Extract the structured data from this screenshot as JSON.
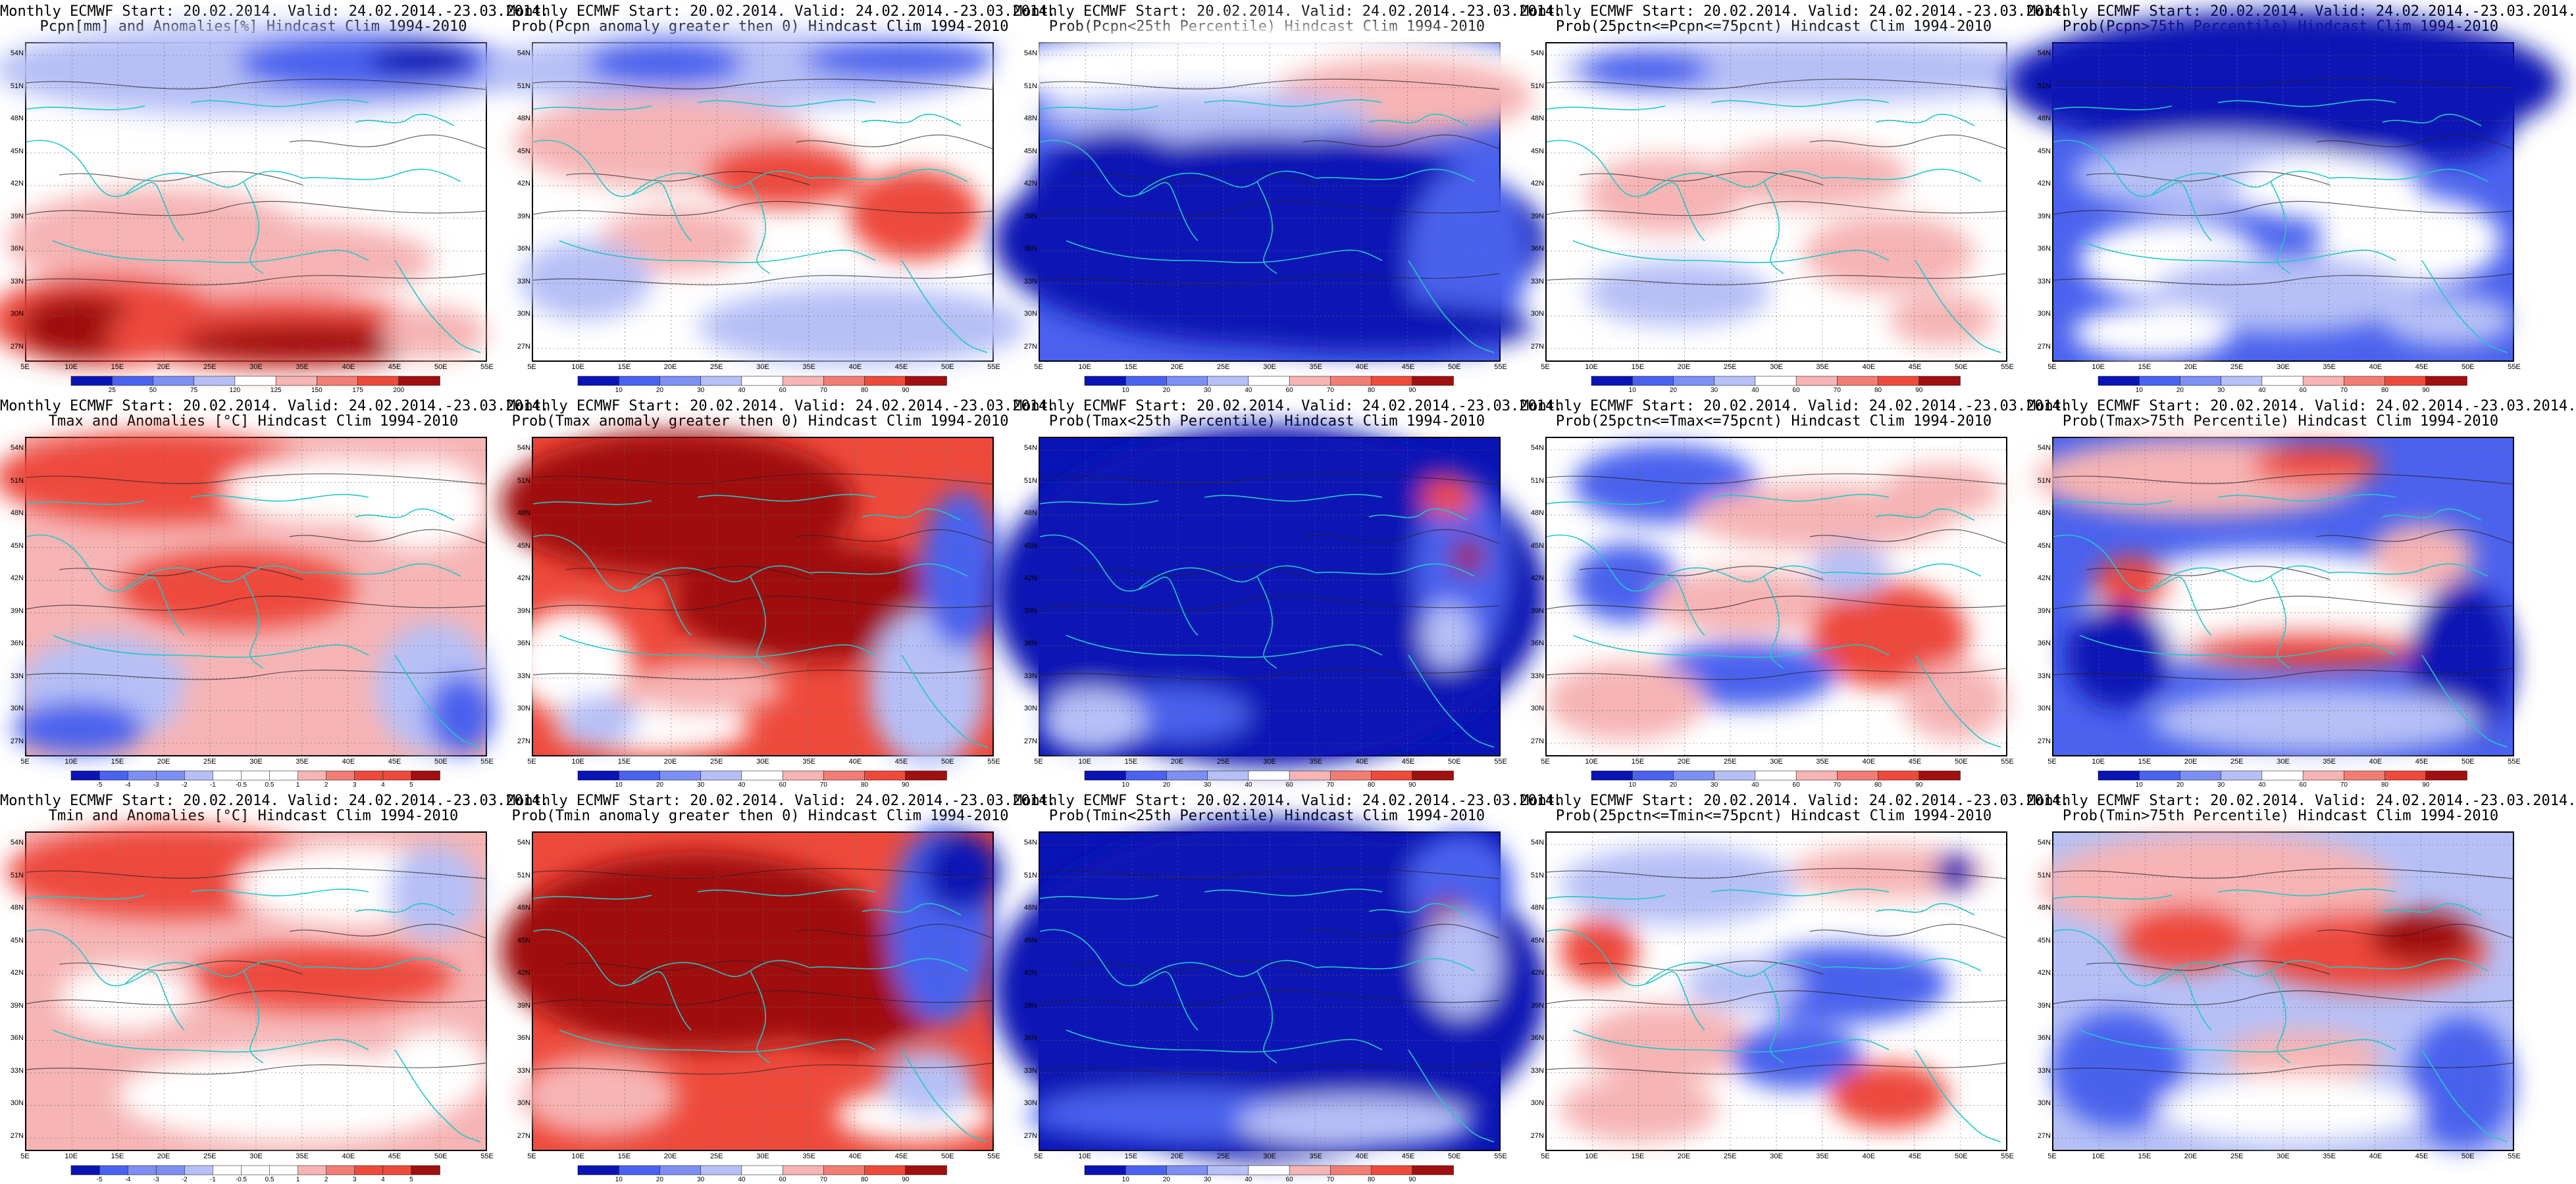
{
  "figure": {
    "columns": 5,
    "rows": 3,
    "lat_ticks": [
      "54N",
      "51N",
      "48N",
      "45N",
      "42N",
      "39N",
      "36N",
      "33N",
      "30N",
      "27N"
    ],
    "lon_ticks": [
      "5E",
      "10E",
      "15E",
      "20E",
      "25E",
      "30E",
      "35E",
      "40E",
      "45E",
      "50E",
      "55E"
    ],
    "cbar_anomaly_pcpn": [
      "25",
      "50",
      "75",
      "120",
      "125",
      "150",
      "175",
      "200"
    ],
    "cbar_anomaly_temp": [
      "-5",
      "-4",
      "-3",
      "-2",
      "-1",
      "-0.5",
      "0.5",
      "1",
      "2",
      "3",
      "4",
      "5"
    ],
    "cbar_probability": [
      "10",
      "20",
      "30",
      "40",
      "60",
      "70",
      "80",
      "90"
    ]
  },
  "colors": {
    "blue_dark": "#0a14b4",
    "blue_mid": "#4a62ee",
    "blue_light": "#b6c0f6",
    "neutral": "#ffffff",
    "red_light": "#f6b4b4",
    "red_mid": "#ee4a3c",
    "red_dark": "#a01010",
    "coast": "#22c8c8",
    "contour": "#222222"
  },
  "panels": [
    {
      "title_line1": "Monthly ECMWF Start: 20.02.2014. Valid: 24.02.2014.-23.03.2014.",
      "title_line2": "Pcpn[mm] and Anomalies[%] Hindcast Clim 1994-2010",
      "scheme": "pcpn_anom",
      "cbar": "cbar_anomaly_pcpn",
      "show_cbar": true
    },
    {
      "title_line1": "Monthly ECMWF Start: 20.02.2014. Valid: 24.02.2014.-23.03.2014.",
      "title_line2": "Prob(Pcpn anomaly greater then 0) Hindcast Clim 1994-2010",
      "scheme": "pcpn_prob0",
      "cbar": "cbar_probability",
      "show_cbar": true
    },
    {
      "title_line1": "Monthly ECMWF Start: 20.02.2014. Valid: 24.02.2014.-23.03.2014.",
      "title_line2": "Prob(Pcpn<25th Percentile) Hindcast Clim 1994-2010",
      "scheme": "pcpn_p25",
      "cbar": "cbar_probability",
      "show_cbar": true
    },
    {
      "title_line1": "Monthly ECMWF Start: 20.02.2014. Valid: 24.02.2014.-23.03.2014.",
      "title_line2": "Prob(25pctn<=Pcpn<=75pcnt) Hindcast Clim 1994-2010",
      "scheme": "pcpn_mid",
      "cbar": "cbar_probability",
      "show_cbar": true
    },
    {
      "title_line1": "Monthly ECMWF Start: 20.02.2014. Valid: 24.02.2014.-23.03.2014.",
      "title_line2": "Prob(Pcpn>75th Percentile) Hindcast Clim 1994-2010",
      "scheme": "pcpn_p75",
      "cbar": "cbar_probability",
      "show_cbar": true
    },
    {
      "title_line1": "Monthly ECMWF Start: 20.02.2014. Valid: 24.02.2014.-23.03.2014.",
      "title_line2": "Tmax and Anomalies [°C] Hindcast Clim 1994-2010",
      "scheme": "tmax_anom",
      "cbar": "cbar_anomaly_temp",
      "show_cbar": true
    },
    {
      "title_line1": "Monthly ECMWF Start: 20.02.2014. Valid: 24.02.2014.-23.03.2014.",
      "title_line2": "Prob(Tmax anomaly greater then 0) Hindcast Clim 1994-2010",
      "scheme": "tmax_prob0",
      "cbar": "cbar_probability",
      "show_cbar": true
    },
    {
      "title_line1": "Monthly ECMWF Start: 20.02.2014. Valid: 24.02.2014.-23.03.2014.",
      "title_line2": "Prob(Tmax<25th Percentile) Hindcast Clim 1994-2010",
      "scheme": "tmax_p25",
      "cbar": "cbar_probability",
      "show_cbar": true
    },
    {
      "title_line1": "Monthly ECMWF Start: 20.02.2014. Valid: 24.02.2014.-23.03.2014.",
      "title_line2": "Prob(25pctn<=Tmax<=75pcnt) Hindcast Clim 1994-2010",
      "scheme": "tmax_mid",
      "cbar": "cbar_probability",
      "show_cbar": true
    },
    {
      "title_line1": "Monthly ECMWF Start: 20.02.2014. Valid: 24.02.2014.-23.03.2014.",
      "title_line2": "Prob(Tmax>75th Percentile) Hindcast Clim 1994-2010",
      "scheme": "tmax_p75",
      "cbar": "cbar_probability",
      "show_cbar": true
    },
    {
      "title_line1": "Monthly ECMWF Start: 20.02.2014. Valid: 24.02.2014.-23.03.2014.",
      "title_line2": "Tmin and Anomalies [°C] Hindcast Clim 1994-2010",
      "scheme": "tmin_anom",
      "cbar": "cbar_anomaly_temp",
      "show_cbar": true
    },
    {
      "title_line1": "Monthly ECMWF Start: 20.02.2014. Valid: 24.02.2014.-23.03.2014.",
      "title_line2": "Prob(Tmin anomaly greater then 0) Hindcast Clim 1994-2010",
      "scheme": "tmin_prob0",
      "cbar": "cbar_probability",
      "show_cbar": true
    },
    {
      "title_line1": "Monthly ECMWF Start: 20.02.2014. Valid: 24.02.2014.-23.03.2014.",
      "title_line2": "Prob(Tmin<25th Percentile) Hindcast Clim 1994-2010",
      "scheme": "tmin_p25",
      "cbar": "cbar_probability",
      "show_cbar": true
    },
    {
      "title_line1": "Monthly ECMWF Start: 20.02.2014. Valid: 24.02.2014.-23.03.2014.",
      "title_line2": "Prob(25pctn<=Tmin<=75pcnt) Hindcast Clim 1994-2010",
      "scheme": "tmin_mid",
      "cbar": "cbar_probability",
      "show_cbar": false
    },
    {
      "title_line1": "Monthly ECMWF Start: 20.02.2014. Valid: 24.02.2014.-23.03.2014.",
      "title_line2": "Prob(Tmin>75th Percentile) Hindcast Clim 1994-2010",
      "scheme": "tmin_p75",
      "cbar": "cbar_probability",
      "show_cbar": false
    }
  ]
}
